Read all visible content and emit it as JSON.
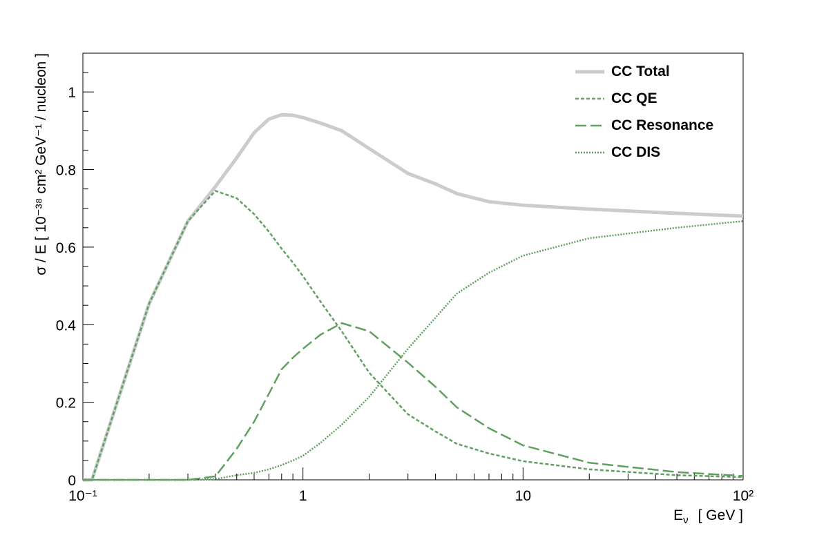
{
  "chart_data": {
    "type": "line",
    "ylabel": "σ / E  [ 10⁻³⁸ cm² GeV⁻¹ / nucleon ]",
    "xlabel": {
      "symbol": "E",
      "sub": "ν",
      "unit": "[ GeV ]"
    },
    "xscale": "log",
    "xlim": [
      0.1,
      100
    ],
    "xticks": [
      {
        "value": 0.1,
        "label": "10⁻¹"
      },
      1,
      10,
      {
        "value": 100,
        "label": "10²"
      }
    ],
    "xminorticks": [
      0.2,
      0.3,
      0.4,
      0.5,
      0.6,
      0.7,
      0.8,
      0.9,
      2,
      3,
      4,
      5,
      6,
      7,
      8,
      9,
      20,
      30,
      40,
      50,
      60,
      70,
      80,
      90
    ],
    "ylim": [
      0,
      1.1
    ],
    "yticks": [
      0,
      0.2,
      0.4,
      0.6,
      0.8,
      1
    ],
    "yminorticks": [
      0.05,
      0.1,
      0.15,
      0.25,
      0.3,
      0.35,
      0.45,
      0.5,
      0.55,
      0.65,
      0.7,
      0.75,
      0.85,
      0.9,
      0.95,
      1.05
    ],
    "legend": "top-right",
    "x": [
      0.1,
      0.11,
      0.2,
      0.3,
      0.4,
      0.5,
      0.6,
      0.7,
      0.8,
      0.9,
      1,
      1.2,
      1.5,
      2,
      3,
      4,
      5,
      7,
      10,
      20,
      50,
      100
    ],
    "series": [
      {
        "name": "CC Total",
        "color": "#cccccc",
        "width": 5,
        "dash": "solid",
        "values": [
          0,
          0,
          0.454,
          0.667,
          0.756,
          0.83,
          0.895,
          0.93,
          0.941,
          0.94,
          0.934,
          0.92,
          0.9,
          0.854,
          0.79,
          0.763,
          0.738,
          0.717,
          0.708,
          0.698,
          0.687,
          0.68
        ]
      },
      {
        "name": "CC QE",
        "color": "#5f9f5f",
        "width": 2.5,
        "dash": "dashed",
        "values": [
          0,
          0,
          0.454,
          0.667,
          0.745,
          0.726,
          0.685,
          0.64,
          0.596,
          0.56,
          0.525,
          0.46,
          0.383,
          0.276,
          0.169,
          0.125,
          0.093,
          0.068,
          0.048,
          0.027,
          0.012,
          0.007
        ]
      },
      {
        "name": "CC Resonance",
        "color": "#5f9f5f",
        "width": 2.5,
        "dash": "long-dashed",
        "values": [
          0,
          0,
          0,
          0,
          0.009,
          0.08,
          0.15,
          0.222,
          0.285,
          0.315,
          0.338,
          0.374,
          0.404,
          0.383,
          0.302,
          0.24,
          0.187,
          0.133,
          0.089,
          0.044,
          0.02,
          0.01
        ]
      },
      {
        "name": "CC DIS",
        "color": "#5f9f5f",
        "width": 2.5,
        "dash": "dotted",
        "values": [
          0,
          0,
          0,
          0,
          0.002,
          0.012,
          0.018,
          0.027,
          0.038,
          0.05,
          0.062,
          0.095,
          0.142,
          0.214,
          0.338,
          0.418,
          0.48,
          0.534,
          0.578,
          0.623,
          0.65,
          0.667
        ]
      }
    ]
  }
}
